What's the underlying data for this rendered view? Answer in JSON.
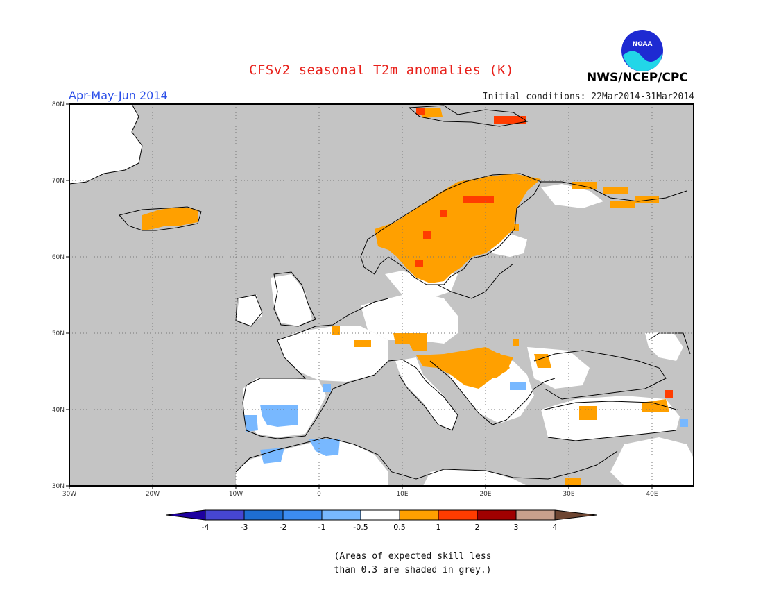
{
  "header": {
    "title": "CFSv2 seasonal T2m anomalies (K)",
    "season": "Apr-May-Jun 2014",
    "initial_conditions": "Initial conditions: 22Mar2014-31Mar2014",
    "agency": "NWS/NCEP/CPC",
    "logo_text": "NOAA"
  },
  "map": {
    "lon_range": [
      -30,
      45
    ],
    "lat_range": [
      30,
      80
    ],
    "lon_labels": [
      "30W",
      "20W",
      "10W",
      "0",
      "10E",
      "20E",
      "30E",
      "40E"
    ],
    "lat_labels": [
      "30N",
      "40N",
      "50N",
      "60N",
      "70N",
      "80N"
    ],
    "gridlines": true,
    "colors": {
      "land_low_skill": "#c4c4c4",
      "neutral": "#ffffff",
      "warm_0_5_1": "#ffa000",
      "warm_1_2": "#ff3c00",
      "warm_2_3": "#a00000",
      "cool_m0_5_m1": "#78b8ff",
      "cool_m1_m2": "#3c8cf0"
    }
  },
  "colorbar": {
    "labels": [
      "-4",
      "-3",
      "-2",
      "-1",
      "-0.5",
      "0.5",
      "1",
      "2",
      "3",
      "4"
    ],
    "colors": [
      "#1e00a0",
      "#4646d2",
      "#1e6ed2",
      "#3c8cf0",
      "#78b8ff",
      "#ffffff",
      "#ffa000",
      "#ff3c00",
      "#a00000",
      "#c8a08c",
      "#6e4632"
    ]
  },
  "note": {
    "line1": "(Areas of expected skill less",
    "line2": "than 0.3 are shaded in grey.)"
  }
}
